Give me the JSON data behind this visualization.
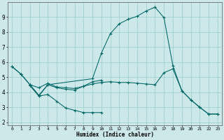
{
  "xlabel": "Humidex (Indice chaleur)",
  "background_color": "#cce8e8",
  "grid_color": "#99cccc",
  "line_color": "#006666",
  "xlim": [
    -0.5,
    23.5
  ],
  "ylim": [
    1.8,
    10.0
  ],
  "xticks": [
    0,
    1,
    2,
    3,
    4,
    5,
    6,
    7,
    8,
    9,
    10,
    11,
    12,
    13,
    14,
    15,
    16,
    17,
    18,
    19,
    20,
    21,
    22,
    23
  ],
  "yticks": [
    2,
    3,
    4,
    5,
    6,
    7,
    8,
    9
  ],
  "lines": [
    {
      "x": [
        0,
        1,
        2,
        3,
        4,
        9,
        10,
        11,
        12,
        13,
        14,
        15,
        16,
        17,
        18,
        19,
        20,
        21,
        22,
        23
      ],
      "y": [
        5.7,
        5.2,
        4.5,
        3.8,
        4.5,
        4.9,
        6.6,
        7.9,
        8.55,
        8.85,
        9.05,
        9.4,
        9.65,
        8.95,
        5.75,
        4.1,
        3.5,
        3.0,
        2.55,
        2.55
      ]
    },
    {
      "x": [
        0,
        1,
        2,
        3,
        4,
        5,
        6,
        7,
        8,
        9,
        10,
        11,
        12,
        13,
        14,
        15,
        16,
        17,
        18,
        19,
        20,
        21,
        22,
        23
      ],
      "y": [
        5.7,
        5.2,
        4.5,
        4.3,
        4.6,
        4.35,
        4.3,
        4.25,
        4.4,
        4.55,
        4.65,
        4.7,
        4.65,
        4.65,
        4.6,
        4.55,
        4.5,
        5.3,
        5.55,
        4.1,
        3.5,
        3.0,
        2.55,
        2.55
      ]
    },
    {
      "x": [
        2,
        3,
        4,
        5,
        6,
        7,
        8,
        9,
        10
      ],
      "y": [
        4.45,
        3.75,
        4.5,
        4.3,
        4.2,
        4.15,
        4.4,
        4.7,
        4.8
      ]
    },
    {
      "x": [
        2,
        3,
        4,
        5,
        6,
        7,
        8,
        9,
        10
      ],
      "y": [
        4.45,
        3.75,
        3.85,
        3.4,
        2.95,
        2.8,
        2.65,
        2.65,
        2.65
      ]
    }
  ]
}
